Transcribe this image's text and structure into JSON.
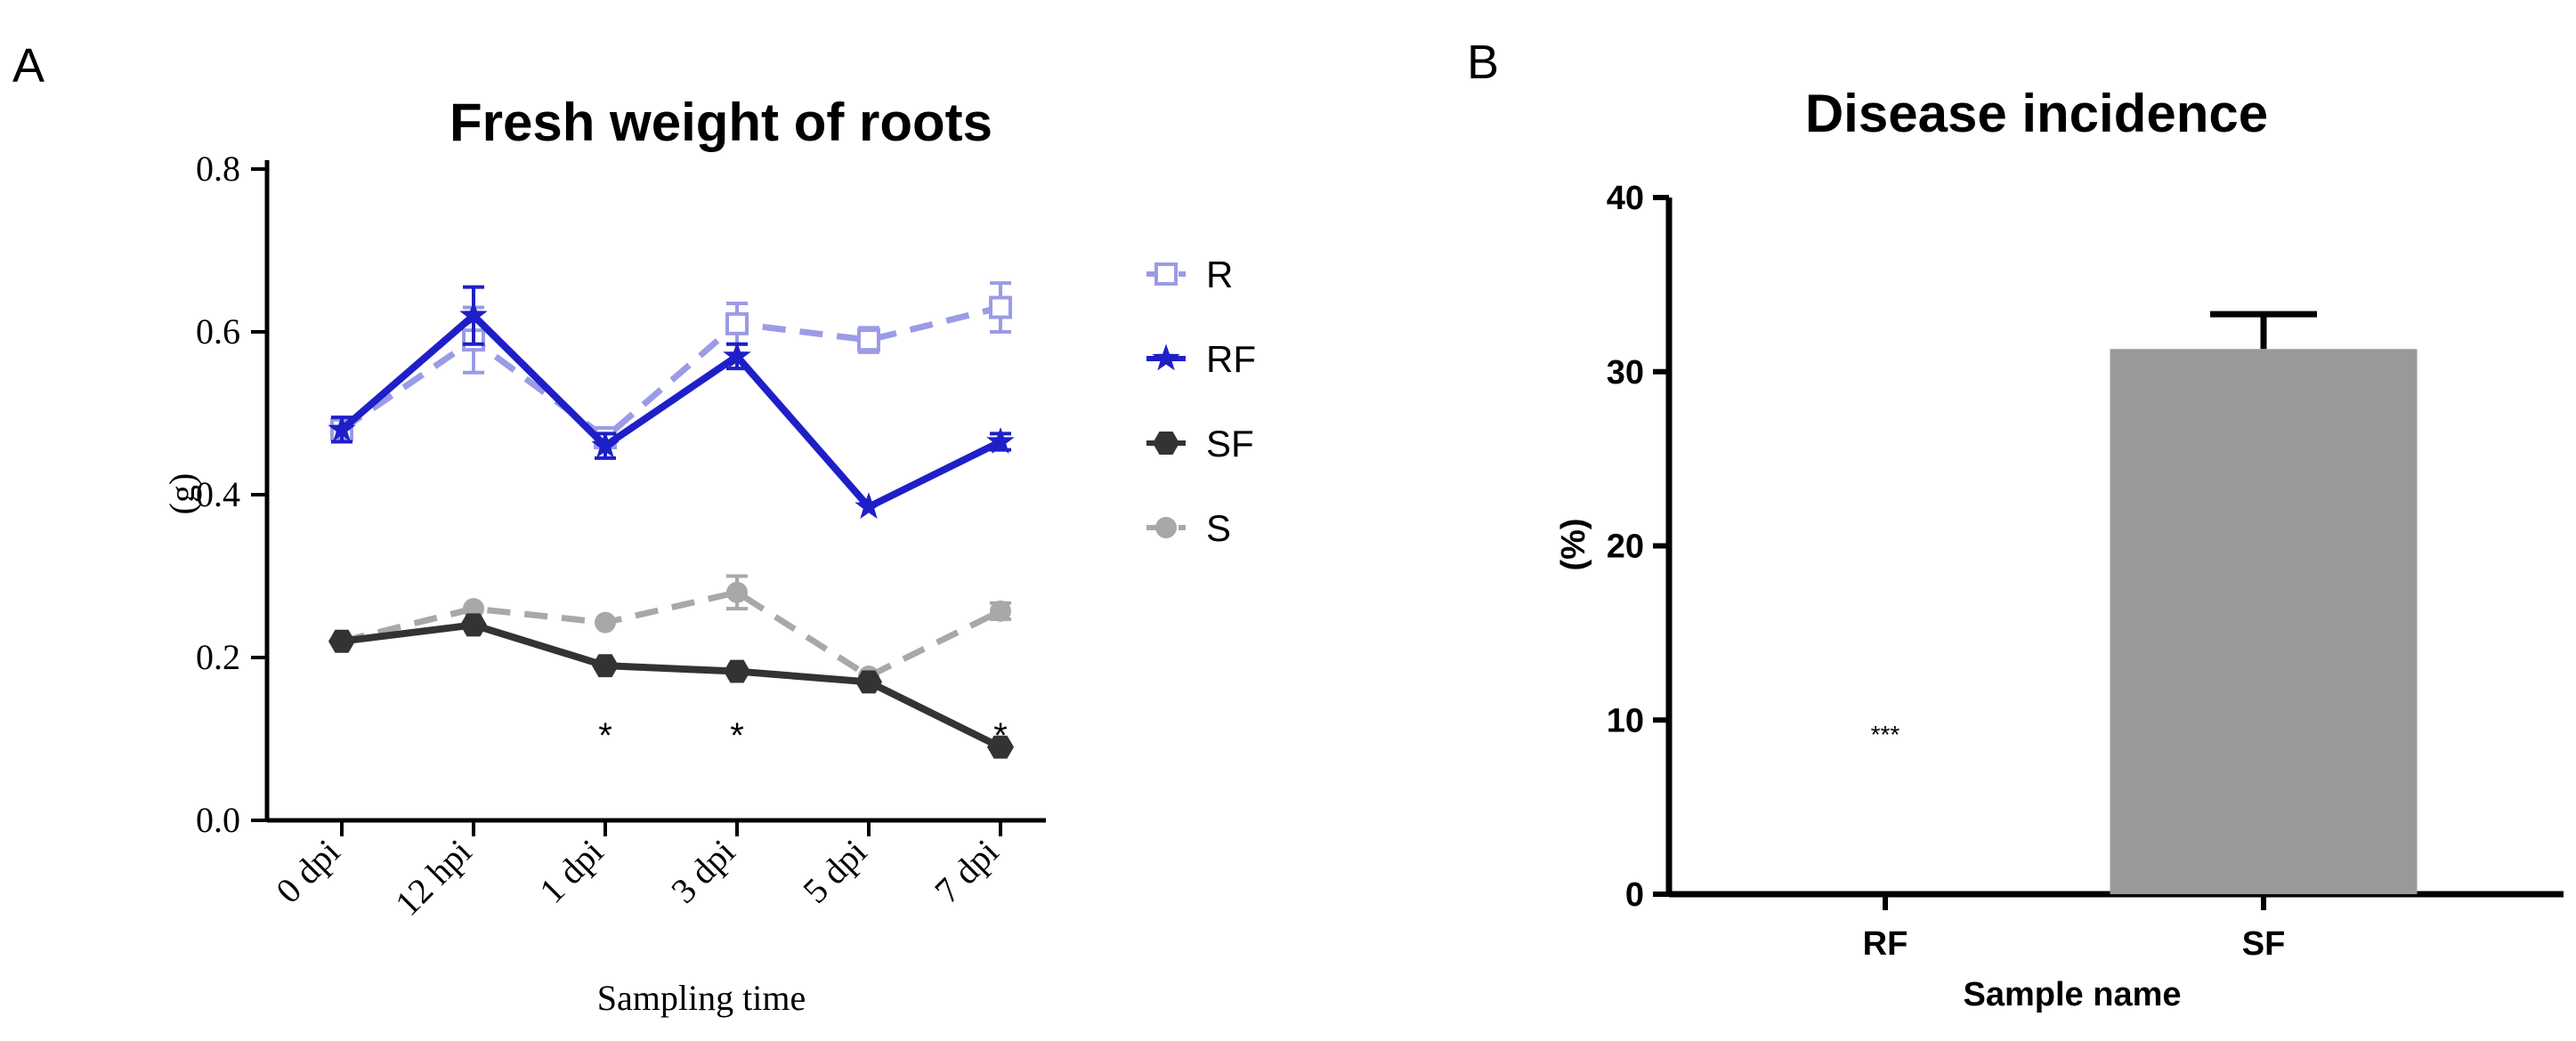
{
  "panels": {
    "a_letter": "A",
    "b_letter": "B"
  },
  "colors": {
    "R": "#9b9be6",
    "RF": "#1f1fc8",
    "SF": "#333333",
    "S": "#a8a8a8",
    "bar": "#999999",
    "axis": "#000000"
  },
  "chart_data": [
    {
      "type": "line",
      "title": "Fresh weight of roots",
      "xlabel": "Sampling time",
      "ylabel": "(g)",
      "categories": [
        "0 dpi",
        "12 hpi",
        "1 dpi",
        "3 dpi",
        "5 dpi",
        "7 dpi"
      ],
      "ylim": [
        0.0,
        0.8
      ],
      "yticks": [
        "0.0",
        "0.2",
        "0.4",
        "0.6",
        "0.8"
      ],
      "series": [
        {
          "name": "R",
          "style": "dashed",
          "marker": "open-square",
          "values": [
            0.48,
            0.59,
            0.47,
            0.61,
            0.59,
            0.63
          ],
          "errors": [
            0.01,
            0.04,
            0.01,
            0.025,
            0.015,
            0.03
          ]
        },
        {
          "name": "RF",
          "style": "solid",
          "marker": "star",
          "values": [
            0.48,
            0.62,
            0.46,
            0.57,
            0.385,
            0.465
          ],
          "errors": [
            0.015,
            0.035,
            0.015,
            0.015,
            0.005,
            0.01
          ]
        },
        {
          "name": "SF",
          "style": "solid",
          "marker": "hexagon",
          "values": [
            0.22,
            0.24,
            0.19,
            0.183,
            0.17,
            0.09
          ],
          "errors": [
            0.005,
            0.005,
            0.005,
            0.005,
            0.005,
            0.005
          ]
        },
        {
          "name": "S",
          "style": "dashed",
          "marker": "circle",
          "values": [
            0.22,
            0.26,
            0.243,
            0.28,
            0.177,
            0.257
          ],
          "errors": [
            0.005,
            0.005,
            0.005,
            0.02,
            0.005,
            0.01
          ]
        }
      ],
      "annotations": [
        {
          "category": "1 dpi",
          "text": "*"
        },
        {
          "category": "3 dpi",
          "text": "*"
        },
        {
          "category": "7 dpi",
          "text": "*"
        }
      ],
      "legend": [
        "R",
        "RF",
        "SF",
        "S"
      ],
      "legend_position": "right"
    },
    {
      "type": "bar",
      "title": "Disease incidence",
      "xlabel": "Sample name",
      "ylabel": "(%)",
      "categories": [
        "RF",
        "SF"
      ],
      "values": [
        0,
        31.3
      ],
      "errors": [
        0,
        2.0
      ],
      "ylim": [
        0,
        40
      ],
      "yticks": [
        "0",
        "10",
        "20",
        "30",
        "40"
      ],
      "annotations": [
        {
          "category": "RF",
          "text": "***",
          "value": 9.2
        }
      ]
    }
  ]
}
